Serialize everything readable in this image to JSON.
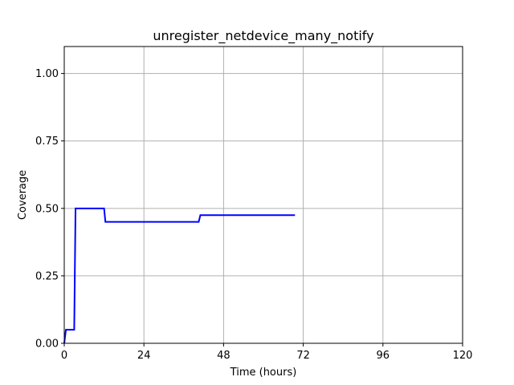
{
  "chart_data": {
    "type": "line",
    "title": "unregister_netdevice_many_notify",
    "xlabel": "Time (hours)",
    "ylabel": "Coverage",
    "xlim": [
      0,
      120
    ],
    "ylim": [
      0,
      1.1
    ],
    "x_ticks": [
      0,
      24,
      48,
      72,
      96,
      120
    ],
    "x_tick_labels": [
      "0",
      "24",
      "48",
      "72",
      "96",
      "120"
    ],
    "y_ticks": [
      0,
      0.25,
      0.5,
      0.75,
      1.0
    ],
    "y_tick_labels": [
      "0.00",
      "0.25",
      "0.50",
      "0.75",
      "1.00"
    ],
    "grid": true,
    "series": [
      {
        "color": "#0000ff",
        "x": [
          0,
          0.5,
          0.5,
          3.0,
          3.4,
          12.0,
          12.4,
          40.5,
          41.0,
          69.5
        ],
        "y": [
          0,
          0.05,
          0.05,
          0.05,
          0.5,
          0.5,
          0.45,
          0.45,
          0.475,
          0.475
        ]
      }
    ]
  }
}
